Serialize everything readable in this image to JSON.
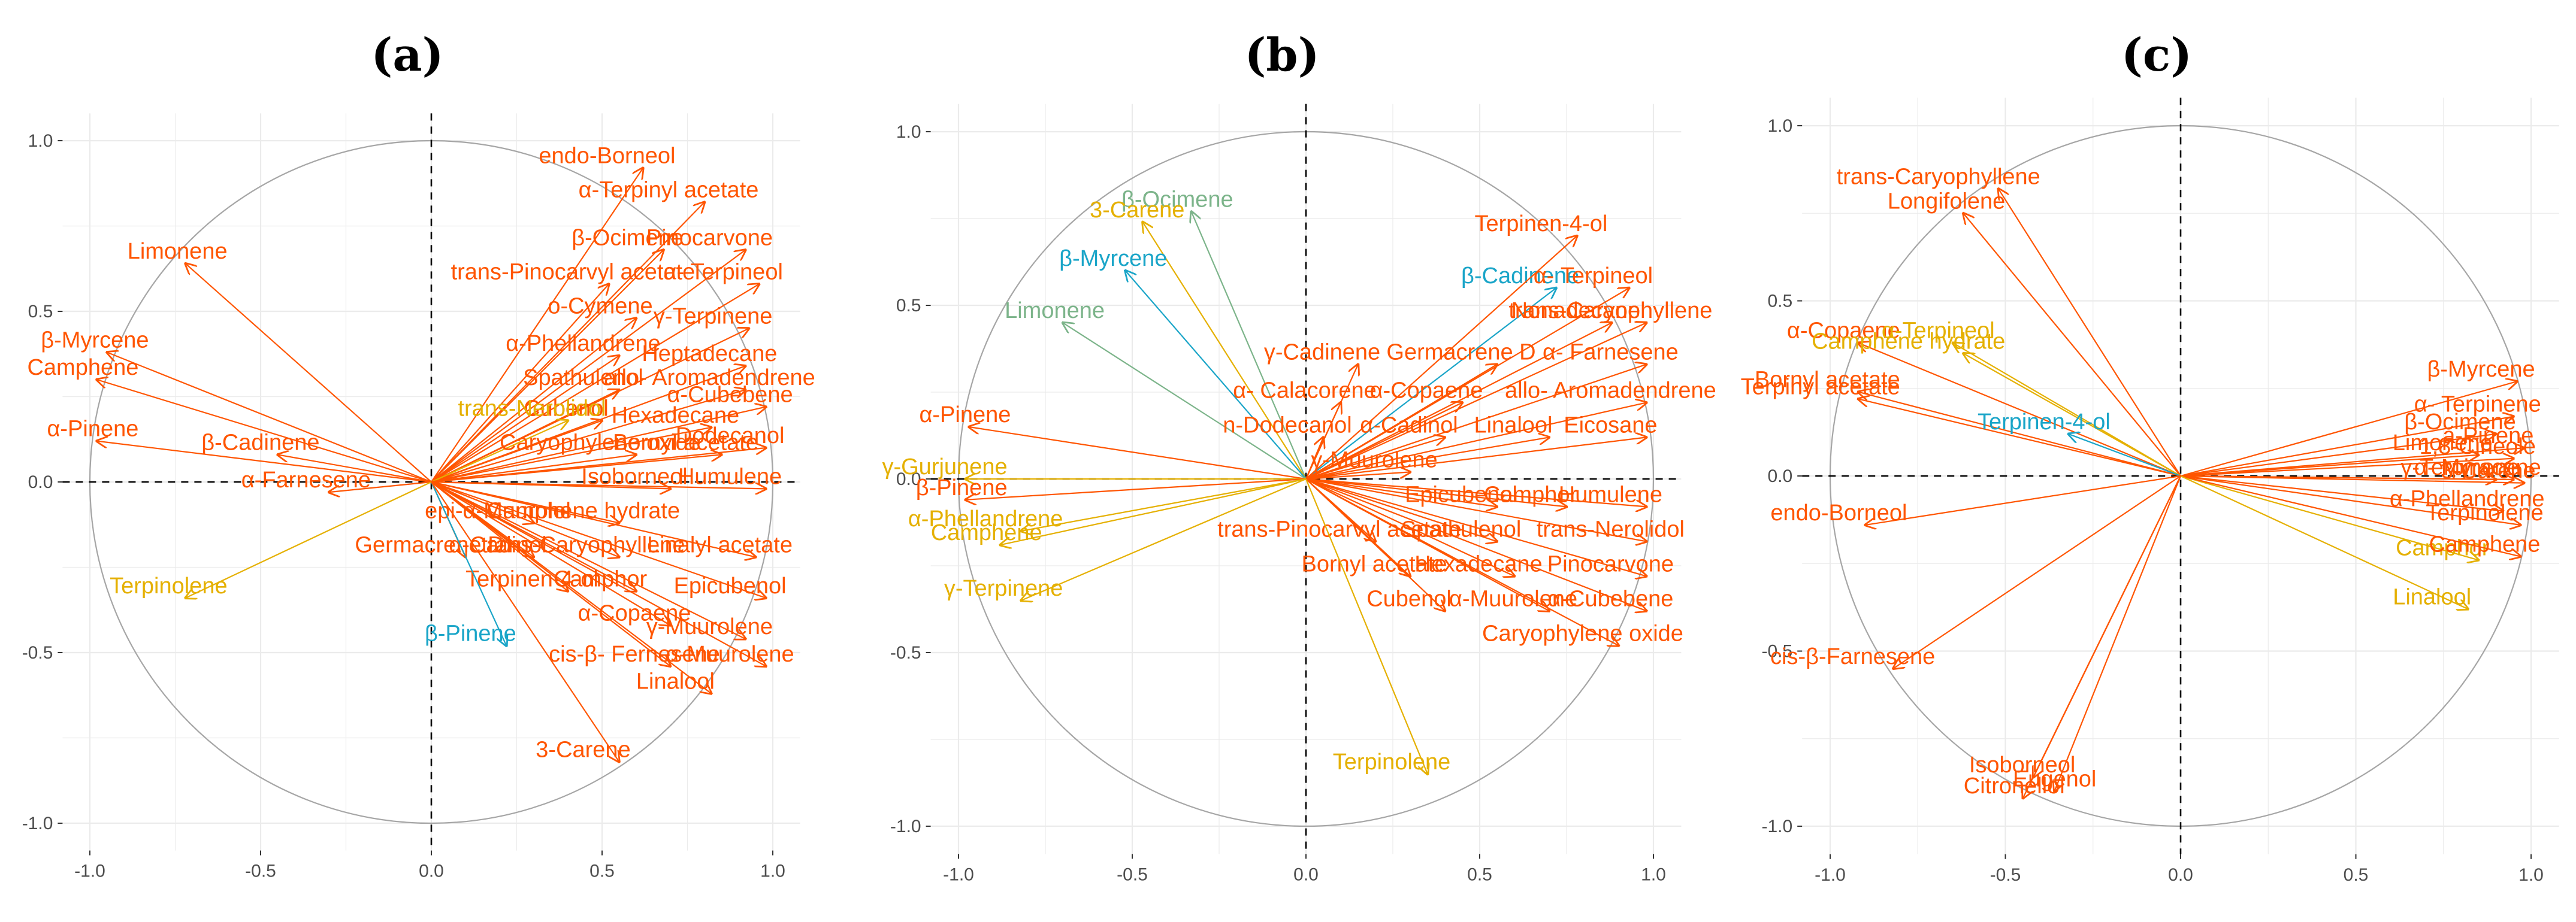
{
  "colors": {
    "orange": "#FF5500",
    "gold": "#E5B000",
    "teal": "#1AA5C8",
    "sage": "#7CB48A",
    "grid": "#EBEBEB",
    "circle": "#A6A6A6",
    "axis": "#000000"
  },
  "chart_data": [
    {
      "type": "pca-correlation-circle",
      "title": "(a)",
      "xlim": [
        -1.05,
        1.05
      ],
      "ylim": [
        -1.05,
        1.05
      ],
      "x_ticks": [
        "-1.0",
        "-0.5",
        "0.0",
        "0.5",
        "1.0"
      ],
      "y_ticks": [
        "-1.0",
        "-0.5",
        "0.0",
        "0.5",
        "1.0"
      ],
      "vectors": [
        {
          "label": "endo-Borneol",
          "x": 0.62,
          "y": 0.92,
          "group": "orange"
        },
        {
          "label": "α-Terpinyl acetate",
          "x": 0.8,
          "y": 0.82,
          "group": "orange"
        },
        {
          "label": "β-Ocimene",
          "x": 0.68,
          "y": 0.68,
          "group": "orange"
        },
        {
          "label": "Pinocarvone",
          "x": 0.92,
          "y": 0.68,
          "group": "orange"
        },
        {
          "label": "trans-Pinocarvyl acetate",
          "x": 0.52,
          "y": 0.58,
          "group": "orange"
        },
        {
          "label": "α- Terpineol",
          "x": 0.96,
          "y": 0.58,
          "group": "orange"
        },
        {
          "label": "o-Cymene",
          "x": 0.6,
          "y": 0.48,
          "group": "orange"
        },
        {
          "label": "γ-Terpinene",
          "x": 0.93,
          "y": 0.45,
          "group": "orange"
        },
        {
          "label": "α-Phellandrene",
          "x": 0.55,
          "y": 0.37,
          "group": "orange"
        },
        {
          "label": "Heptadecane",
          "x": 0.92,
          "y": 0.34,
          "group": "orange"
        },
        {
          "label": "Spathulenol",
          "x": 0.55,
          "y": 0.27,
          "group": "orange"
        },
        {
          "label": "allo- Aromadendrene",
          "x": 0.92,
          "y": 0.27,
          "group": "orange"
        },
        {
          "label": "α-Cubebene",
          "x": 0.98,
          "y": 0.22,
          "group": "orange"
        },
        {
          "label": "Cubenol",
          "x": 0.5,
          "y": 0.18,
          "group": "orange"
        },
        {
          "label": "trans-Nerolidol",
          "x": 0.4,
          "y": 0.18,
          "group": "gold"
        },
        {
          "label": "Hexadecane",
          "x": 0.82,
          "y": 0.16,
          "group": "orange"
        },
        {
          "label": "Caryophylene oxide",
          "x": 0.6,
          "y": 0.08,
          "group": "orange"
        },
        {
          "label": "Bornyl acetate",
          "x": 0.85,
          "y": 0.08,
          "group": "orange"
        },
        {
          "label": "Dodecanol",
          "x": 0.98,
          "y": 0.1,
          "group": "orange"
        },
        {
          "label": "Limonene",
          "x": -0.72,
          "y": 0.64,
          "group": "orange"
        },
        {
          "label": "β-Myrcene",
          "x": -0.95,
          "y": 0.38,
          "group": "orange"
        },
        {
          "label": "Camphene",
          "x": -0.98,
          "y": 0.3,
          "group": "orange"
        },
        {
          "label": "α-Pinene",
          "x": -0.98,
          "y": 0.12,
          "group": "orange"
        },
        {
          "label": "β-Cadinene",
          "x": -0.45,
          "y": 0.08,
          "group": "orange"
        },
        {
          "label": "α-Farnesene",
          "x": -0.3,
          "y": -0.03,
          "group": "orange"
        },
        {
          "label": "Isoborneol",
          "x": 0.7,
          "y": -0.02,
          "group": "orange"
        },
        {
          "label": "Humulene",
          "x": 0.98,
          "y": -0.02,
          "group": "orange"
        },
        {
          "label": "epi-α-Muurolol",
          "x": 0.3,
          "y": -0.12,
          "group": "orange"
        },
        {
          "label": "Camphene hydrate",
          "x": 0.55,
          "y": -0.12,
          "group": "orange"
        },
        {
          "label": "Germacrene D",
          "x": 0.1,
          "y": -0.22,
          "group": "orange"
        },
        {
          "label": "α-Cadinol",
          "x": 0.3,
          "y": -0.22,
          "group": "orange"
        },
        {
          "label": "trans-Caryophyllene",
          "x": 0.55,
          "y": -0.22,
          "group": "orange"
        },
        {
          "label": "Linalyl acetate",
          "x": 0.95,
          "y": -0.22,
          "group": "orange"
        },
        {
          "label": "Terpinolene",
          "x": -0.72,
          "y": -0.34,
          "group": "gold"
        },
        {
          "label": "Terpinen-4-ol",
          "x": 0.4,
          "y": -0.32,
          "group": "orange"
        },
        {
          "label": "Camphor",
          "x": 0.6,
          "y": -0.32,
          "group": "orange"
        },
        {
          "label": "Epicubenol",
          "x": 0.98,
          "y": -0.34,
          "group": "orange"
        },
        {
          "label": "α-Copaene",
          "x": 0.7,
          "y": -0.42,
          "group": "orange"
        },
        {
          "label": "β-Pinene",
          "x": 0.22,
          "y": -0.48,
          "group": "teal"
        },
        {
          "label": "γ-Muurolene",
          "x": 0.92,
          "y": -0.46,
          "group": "orange"
        },
        {
          "label": "cis-β- Fernesene",
          "x": 0.7,
          "y": -0.54,
          "group": "orange"
        },
        {
          "label": "α-Muurolene",
          "x": 0.98,
          "y": -0.54,
          "group": "orange"
        },
        {
          "label": "Linalool",
          "x": 0.82,
          "y": -0.62,
          "group": "orange"
        },
        {
          "label": "3-Carene",
          "x": 0.55,
          "y": -0.82,
          "group": "orange"
        }
      ]
    },
    {
      "type": "pca-correlation-circle",
      "title": "(b)",
      "xlim": [
        -1.05,
        1.05
      ],
      "ylim": [
        -1.05,
        1.05
      ],
      "x_ticks": [
        "-1.0",
        "-0.5",
        "0.0",
        "0.5",
        "1.0"
      ],
      "y_ticks": [
        "-1.0",
        "-0.5",
        "0.0",
        "0.5",
        "1.0"
      ],
      "vectors": [
        {
          "label": "β-Ocimene",
          "x": -0.33,
          "y": 0.77,
          "group": "sage"
        },
        {
          "label": "3-Carene",
          "x": -0.47,
          "y": 0.74,
          "group": "gold"
        },
        {
          "label": "β-Myrcene",
          "x": -0.52,
          "y": 0.6,
          "group": "teal"
        },
        {
          "label": "Limonene",
          "x": -0.7,
          "y": 0.45,
          "group": "sage"
        },
        {
          "label": "β-Cadinene",
          "x": 0.72,
          "y": 0.55,
          "group": "teal"
        },
        {
          "label": "Terpinen-4-ol",
          "x": 0.78,
          "y": 0.7,
          "group": "orange"
        },
        {
          "label": "α- Terpineol",
          "x": 0.93,
          "y": 0.55,
          "group": "orange"
        },
        {
          "label": "Nonadecane",
          "x": 0.88,
          "y": 0.45,
          "group": "orange"
        },
        {
          "label": "trans-Caryophyllene",
          "x": 0.98,
          "y": 0.45,
          "group": "orange"
        },
        {
          "label": "γ-Cadinene",
          "x": 0.15,
          "y": 0.33,
          "group": "orange"
        },
        {
          "label": "Germacrene D",
          "x": 0.55,
          "y": 0.33,
          "group": "orange"
        },
        {
          "label": "α- Farnesene",
          "x": 0.98,
          "y": 0.33,
          "group": "orange"
        },
        {
          "label": "α- Calacorene",
          "x": 0.1,
          "y": 0.22,
          "group": "orange"
        },
        {
          "label": "α-Copaene",
          "x": 0.45,
          "y": 0.22,
          "group": "orange"
        },
        {
          "label": "allo- Aromadendrene",
          "x": 0.98,
          "y": 0.22,
          "group": "orange"
        },
        {
          "label": "n-Dodecanol",
          "x": 0.05,
          "y": 0.12,
          "group": "orange"
        },
        {
          "label": "α-Cadinol",
          "x": 0.4,
          "y": 0.12,
          "group": "orange"
        },
        {
          "label": "Linalool",
          "x": 0.7,
          "y": 0.12,
          "group": "orange"
        },
        {
          "label": "Eicosane",
          "x": 0.98,
          "y": 0.12,
          "group": "orange"
        },
        {
          "label": "α-Pinene",
          "x": -0.97,
          "y": 0.15,
          "group": "orange"
        },
        {
          "label": "γ-Muurolene",
          "x": 0.3,
          "y": 0.02,
          "group": "orange"
        },
        {
          "label": "γ-Gurjunene",
          "x": -0.98,
          "y": 0.0,
          "group": "gold"
        },
        {
          "label": "β-Pinene",
          "x": -0.98,
          "y": -0.06,
          "group": "orange"
        },
        {
          "label": "α-Phellandrene",
          "x": -0.82,
          "y": -0.15,
          "group": "gold"
        },
        {
          "label": "Camphene",
          "x": -0.88,
          "y": -0.19,
          "group": "gold"
        },
        {
          "label": "γ-Terpinene",
          "x": -0.82,
          "y": -0.35,
          "group": "gold"
        },
        {
          "label": "Epicubenol",
          "x": 0.55,
          "y": -0.08,
          "group": "orange"
        },
        {
          "label": "Camphor",
          "x": 0.75,
          "y": -0.08,
          "group": "orange"
        },
        {
          "label": "Humulene",
          "x": 0.98,
          "y": -0.08,
          "group": "orange"
        },
        {
          "label": "trans-Pinocarvyl acetate",
          "x": 0.2,
          "y": -0.18,
          "group": "orange"
        },
        {
          "label": "Spathulenol",
          "x": 0.55,
          "y": -0.18,
          "group": "orange"
        },
        {
          "label": "trans-Nerolidol",
          "x": 0.98,
          "y": -0.18,
          "group": "orange"
        },
        {
          "label": "Bornyl acetate",
          "x": 0.3,
          "y": -0.28,
          "group": "orange"
        },
        {
          "label": "Hexadecane",
          "x": 0.6,
          "y": -0.28,
          "group": "orange"
        },
        {
          "label": "Pinocarvone",
          "x": 0.98,
          "y": -0.28,
          "group": "orange"
        },
        {
          "label": "Cubenol",
          "x": 0.4,
          "y": -0.38,
          "group": "orange"
        },
        {
          "label": "α-Muurolene",
          "x": 0.7,
          "y": -0.38,
          "group": "orange"
        },
        {
          "label": "α-Cubebene",
          "x": 0.98,
          "y": -0.38,
          "group": "orange"
        },
        {
          "label": "Caryophylene oxide",
          "x": 0.9,
          "y": -0.48,
          "group": "orange"
        },
        {
          "label": "Terpinolene",
          "x": 0.35,
          "y": -0.85,
          "group": "gold"
        }
      ]
    },
    {
      "type": "pca-correlation-circle",
      "title": "(c)",
      "xlim": [
        -1.05,
        1.05
      ],
      "ylim": [
        -1.05,
        1.05
      ],
      "x_ticks": [
        "-1.0",
        "-0.5",
        "0.0",
        "0.5",
        "1.0"
      ],
      "y_ticks": [
        "-1.0",
        "-0.5",
        "0.0",
        "0.5",
        "1.0"
      ],
      "vectors": [
        {
          "label": "trans-Caryophyllene",
          "x": -0.52,
          "y": 0.82,
          "group": "orange"
        },
        {
          "label": "Longifolene",
          "x": -0.62,
          "y": 0.75,
          "group": "orange"
        },
        {
          "label": "α-Copaene",
          "x": -0.92,
          "y": 0.38,
          "group": "orange"
        },
        {
          "label": "α-Terpineol",
          "x": -0.65,
          "y": 0.38,
          "group": "gold"
        },
        {
          "label": "Camphene hydrate",
          "x": -0.62,
          "y": 0.35,
          "group": "gold"
        },
        {
          "label": "Bornyl acetate",
          "x": -0.92,
          "y": 0.24,
          "group": "orange"
        },
        {
          "label": "α- Terpinyl acetate",
          "x": -0.92,
          "y": 0.22,
          "group": "orange"
        },
        {
          "label": "Terpinen-4-ol",
          "x": -0.32,
          "y": 0.12,
          "group": "teal"
        },
        {
          "label": "β-Myrcene",
          "x": 0.96,
          "y": 0.27,
          "group": "orange"
        },
        {
          "label": "α- Terpinene",
          "x": 0.95,
          "y": 0.17,
          "group": "orange"
        },
        {
          "label": "β-Ocimene",
          "x": 0.9,
          "y": 0.12,
          "group": "orange"
        },
        {
          "label": "a-Pinene",
          "x": 0.98,
          "y": 0.08,
          "group": "orange"
        },
        {
          "label": "Limonene",
          "x": 0.85,
          "y": 0.06,
          "group": "orange"
        },
        {
          "label": "1,8-Cineole",
          "x": 0.95,
          "y": 0.05,
          "group": "orange"
        },
        {
          "label": "γ-Terpinene",
          "x": 0.9,
          "y": -0.01,
          "group": "orange"
        },
        {
          "label": "α- Myracene",
          "x": 0.95,
          "y": -0.01,
          "group": "orange"
        },
        {
          "label": "3-Carene",
          "x": 0.98,
          "y": -0.02,
          "group": "orange"
        },
        {
          "label": "α-Phellandrene",
          "x": 0.92,
          "y": -0.1,
          "group": "orange"
        },
        {
          "label": "Terpinolene",
          "x": 0.97,
          "y": -0.14,
          "group": "orange"
        },
        {
          "label": "Camphor",
          "x": 0.85,
          "y": -0.24,
          "group": "gold"
        },
        {
          "label": "Camphene",
          "x": 0.97,
          "y": -0.23,
          "group": "orange"
        },
        {
          "label": "Linalool",
          "x": 0.82,
          "y": -0.38,
          "group": "gold"
        },
        {
          "label": "endo-Borneol",
          "x": -0.9,
          "y": -0.14,
          "group": "orange"
        },
        {
          "label": "cis-β-Farnesene",
          "x": -0.82,
          "y": -0.55,
          "group": "orange"
        },
        {
          "label": "Isoborneol",
          "x": -0.42,
          "y": -0.86,
          "group": "orange"
        },
        {
          "label": "Citronellol",
          "x": -0.45,
          "y": -0.92,
          "group": "orange"
        },
        {
          "label": "Eugenol",
          "x": -0.36,
          "y": -0.9,
          "group": "orange"
        }
      ]
    }
  ]
}
